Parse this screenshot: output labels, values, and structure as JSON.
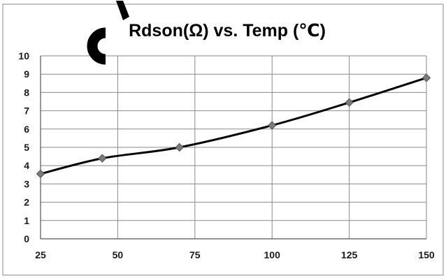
{
  "chart_data": {
    "type": "line",
    "title": "Rdson(Ω) vs. Temp (℃)",
    "xlabel": "",
    "ylabel": "",
    "x": [
      25,
      45,
      70,
      100,
      125,
      150
    ],
    "series": [
      {
        "values": [
          3.55,
          4.4,
          5.0,
          6.2,
          7.45,
          8.8
        ]
      }
    ],
    "x_ticks": [
      25,
      50,
      75,
      100,
      125,
      150
    ],
    "y_ticks": [
      0,
      1,
      2,
      3,
      4,
      5,
      6,
      7,
      8,
      9,
      10
    ],
    "xlim": [
      25,
      150
    ],
    "ylim": [
      0,
      10
    ],
    "grid": true,
    "legend": "none",
    "colors": {
      "line": "#000000",
      "marker": "#7a7a7a",
      "grid": "#8a8a8a",
      "frame": "#8a8a8a"
    }
  }
}
